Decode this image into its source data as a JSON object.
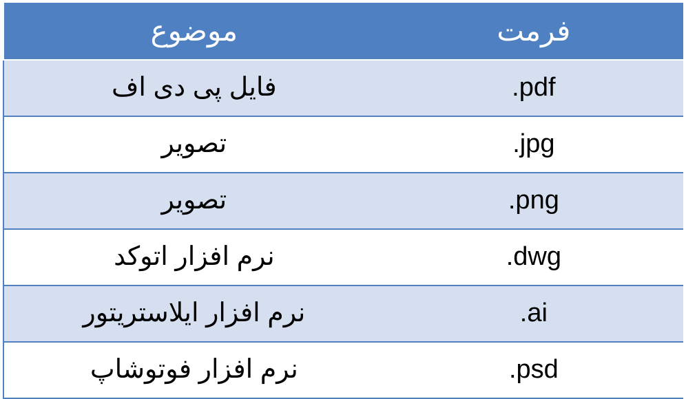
{
  "table": {
    "type": "table",
    "header_bg": "#4f81c2",
    "header_fg": "#ffffff",
    "row_alt_bg": "#d5dfef",
    "row_bg": "#ffffff",
    "border_color_header": "#ffffff",
    "border_color_body": "#4f81c2",
    "font_size_header": 42,
    "font_size_body": 38,
    "columns": [
      {
        "key": "topic",
        "label": "موضوع",
        "width_pct": 56,
        "align": "center"
      },
      {
        "key": "format",
        "label": "فرمت",
        "width_pct": 44,
        "align": "center",
        "ltr": true
      }
    ],
    "rows": [
      {
        "topic": "فایل پی دی اف",
        "format": ".pdf"
      },
      {
        "topic": "تصویر",
        "format": ".jpg"
      },
      {
        "topic": "تصویر",
        "format": ".png"
      },
      {
        "topic": "نرم افزار اتوکد",
        "format": ".dwg"
      },
      {
        "topic": "نرم افزار ایلاستریتور",
        "format": ".ai"
      },
      {
        "topic": "نرم افزار فوتوشاپ",
        "format": ".psd"
      }
    ]
  }
}
